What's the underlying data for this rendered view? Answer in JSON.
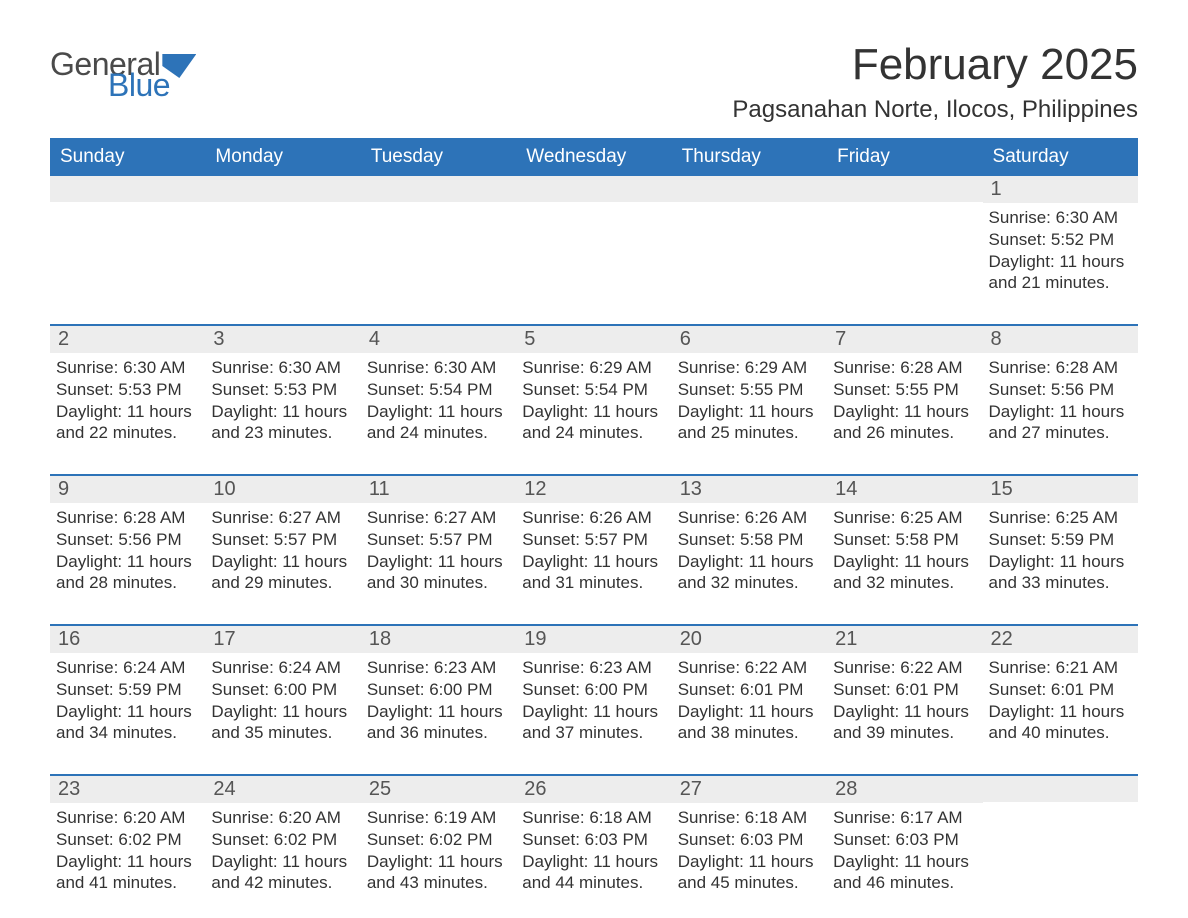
{
  "brand": {
    "general": "General",
    "blue": "Blue"
  },
  "title": "February 2025",
  "location": "Pagsanahan Norte, Ilocos, Philippines",
  "colors": {
    "header_bg": "#2d73b8",
    "header_text": "#ffffff",
    "daynum_bg": "#ededed",
    "rule": "#2d73b8",
    "body_text": "#333333",
    "logo_gray": "#4a4a4a",
    "logo_blue": "#2d73b8",
    "page_bg": "#ffffff"
  },
  "typography": {
    "title_fontsize": 44,
    "location_fontsize": 24,
    "dayheader_fontsize": 19,
    "cell_fontsize": 17,
    "daynum_fontsize": 20,
    "logo_fontsize": 32
  },
  "day_headers": [
    "Sunday",
    "Monday",
    "Tuesday",
    "Wednesday",
    "Thursday",
    "Friday",
    "Saturday"
  ],
  "weeks": [
    [
      null,
      null,
      null,
      null,
      null,
      null,
      {
        "n": "1",
        "sr": "Sunrise: 6:30 AM",
        "ss": "Sunset: 5:52 PM",
        "dl": "Daylight: 11 hours and 21 minutes."
      }
    ],
    [
      {
        "n": "2",
        "sr": "Sunrise: 6:30 AM",
        "ss": "Sunset: 5:53 PM",
        "dl": "Daylight: 11 hours and 22 minutes."
      },
      {
        "n": "3",
        "sr": "Sunrise: 6:30 AM",
        "ss": "Sunset: 5:53 PM",
        "dl": "Daylight: 11 hours and 23 minutes."
      },
      {
        "n": "4",
        "sr": "Sunrise: 6:30 AM",
        "ss": "Sunset: 5:54 PM",
        "dl": "Daylight: 11 hours and 24 minutes."
      },
      {
        "n": "5",
        "sr": "Sunrise: 6:29 AM",
        "ss": "Sunset: 5:54 PM",
        "dl": "Daylight: 11 hours and 24 minutes."
      },
      {
        "n": "6",
        "sr": "Sunrise: 6:29 AM",
        "ss": "Sunset: 5:55 PM",
        "dl": "Daylight: 11 hours and 25 minutes."
      },
      {
        "n": "7",
        "sr": "Sunrise: 6:28 AM",
        "ss": "Sunset: 5:55 PM",
        "dl": "Daylight: 11 hours and 26 minutes."
      },
      {
        "n": "8",
        "sr": "Sunrise: 6:28 AM",
        "ss": "Sunset: 5:56 PM",
        "dl": "Daylight: 11 hours and 27 minutes."
      }
    ],
    [
      {
        "n": "9",
        "sr": "Sunrise: 6:28 AM",
        "ss": "Sunset: 5:56 PM",
        "dl": "Daylight: 11 hours and 28 minutes."
      },
      {
        "n": "10",
        "sr": "Sunrise: 6:27 AM",
        "ss": "Sunset: 5:57 PM",
        "dl": "Daylight: 11 hours and 29 minutes."
      },
      {
        "n": "11",
        "sr": "Sunrise: 6:27 AM",
        "ss": "Sunset: 5:57 PM",
        "dl": "Daylight: 11 hours and 30 minutes."
      },
      {
        "n": "12",
        "sr": "Sunrise: 6:26 AM",
        "ss": "Sunset: 5:57 PM",
        "dl": "Daylight: 11 hours and 31 minutes."
      },
      {
        "n": "13",
        "sr": "Sunrise: 6:26 AM",
        "ss": "Sunset: 5:58 PM",
        "dl": "Daylight: 11 hours and 32 minutes."
      },
      {
        "n": "14",
        "sr": "Sunrise: 6:25 AM",
        "ss": "Sunset: 5:58 PM",
        "dl": "Daylight: 11 hours and 32 minutes."
      },
      {
        "n": "15",
        "sr": "Sunrise: 6:25 AM",
        "ss": "Sunset: 5:59 PM",
        "dl": "Daylight: 11 hours and 33 minutes."
      }
    ],
    [
      {
        "n": "16",
        "sr": "Sunrise: 6:24 AM",
        "ss": "Sunset: 5:59 PM",
        "dl": "Daylight: 11 hours and 34 minutes."
      },
      {
        "n": "17",
        "sr": "Sunrise: 6:24 AM",
        "ss": "Sunset: 6:00 PM",
        "dl": "Daylight: 11 hours and 35 minutes."
      },
      {
        "n": "18",
        "sr": "Sunrise: 6:23 AM",
        "ss": "Sunset: 6:00 PM",
        "dl": "Daylight: 11 hours and 36 minutes."
      },
      {
        "n": "19",
        "sr": "Sunrise: 6:23 AM",
        "ss": "Sunset: 6:00 PM",
        "dl": "Daylight: 11 hours and 37 minutes."
      },
      {
        "n": "20",
        "sr": "Sunrise: 6:22 AM",
        "ss": "Sunset: 6:01 PM",
        "dl": "Daylight: 11 hours and 38 minutes."
      },
      {
        "n": "21",
        "sr": "Sunrise: 6:22 AM",
        "ss": "Sunset: 6:01 PM",
        "dl": "Daylight: 11 hours and 39 minutes."
      },
      {
        "n": "22",
        "sr": "Sunrise: 6:21 AM",
        "ss": "Sunset: 6:01 PM",
        "dl": "Daylight: 11 hours and 40 minutes."
      }
    ],
    [
      {
        "n": "23",
        "sr": "Sunrise: 6:20 AM",
        "ss": "Sunset: 6:02 PM",
        "dl": "Daylight: 11 hours and 41 minutes."
      },
      {
        "n": "24",
        "sr": "Sunrise: 6:20 AM",
        "ss": "Sunset: 6:02 PM",
        "dl": "Daylight: 11 hours and 42 minutes."
      },
      {
        "n": "25",
        "sr": "Sunrise: 6:19 AM",
        "ss": "Sunset: 6:02 PM",
        "dl": "Daylight: 11 hours and 43 minutes."
      },
      {
        "n": "26",
        "sr": "Sunrise: 6:18 AM",
        "ss": "Sunset: 6:03 PM",
        "dl": "Daylight: 11 hours and 44 minutes."
      },
      {
        "n": "27",
        "sr": "Sunrise: 6:18 AM",
        "ss": "Sunset: 6:03 PM",
        "dl": "Daylight: 11 hours and 45 minutes."
      },
      {
        "n": "28",
        "sr": "Sunrise: 6:17 AM",
        "ss": "Sunset: 6:03 PM",
        "dl": "Daylight: 11 hours and 46 minutes."
      },
      null
    ]
  ]
}
